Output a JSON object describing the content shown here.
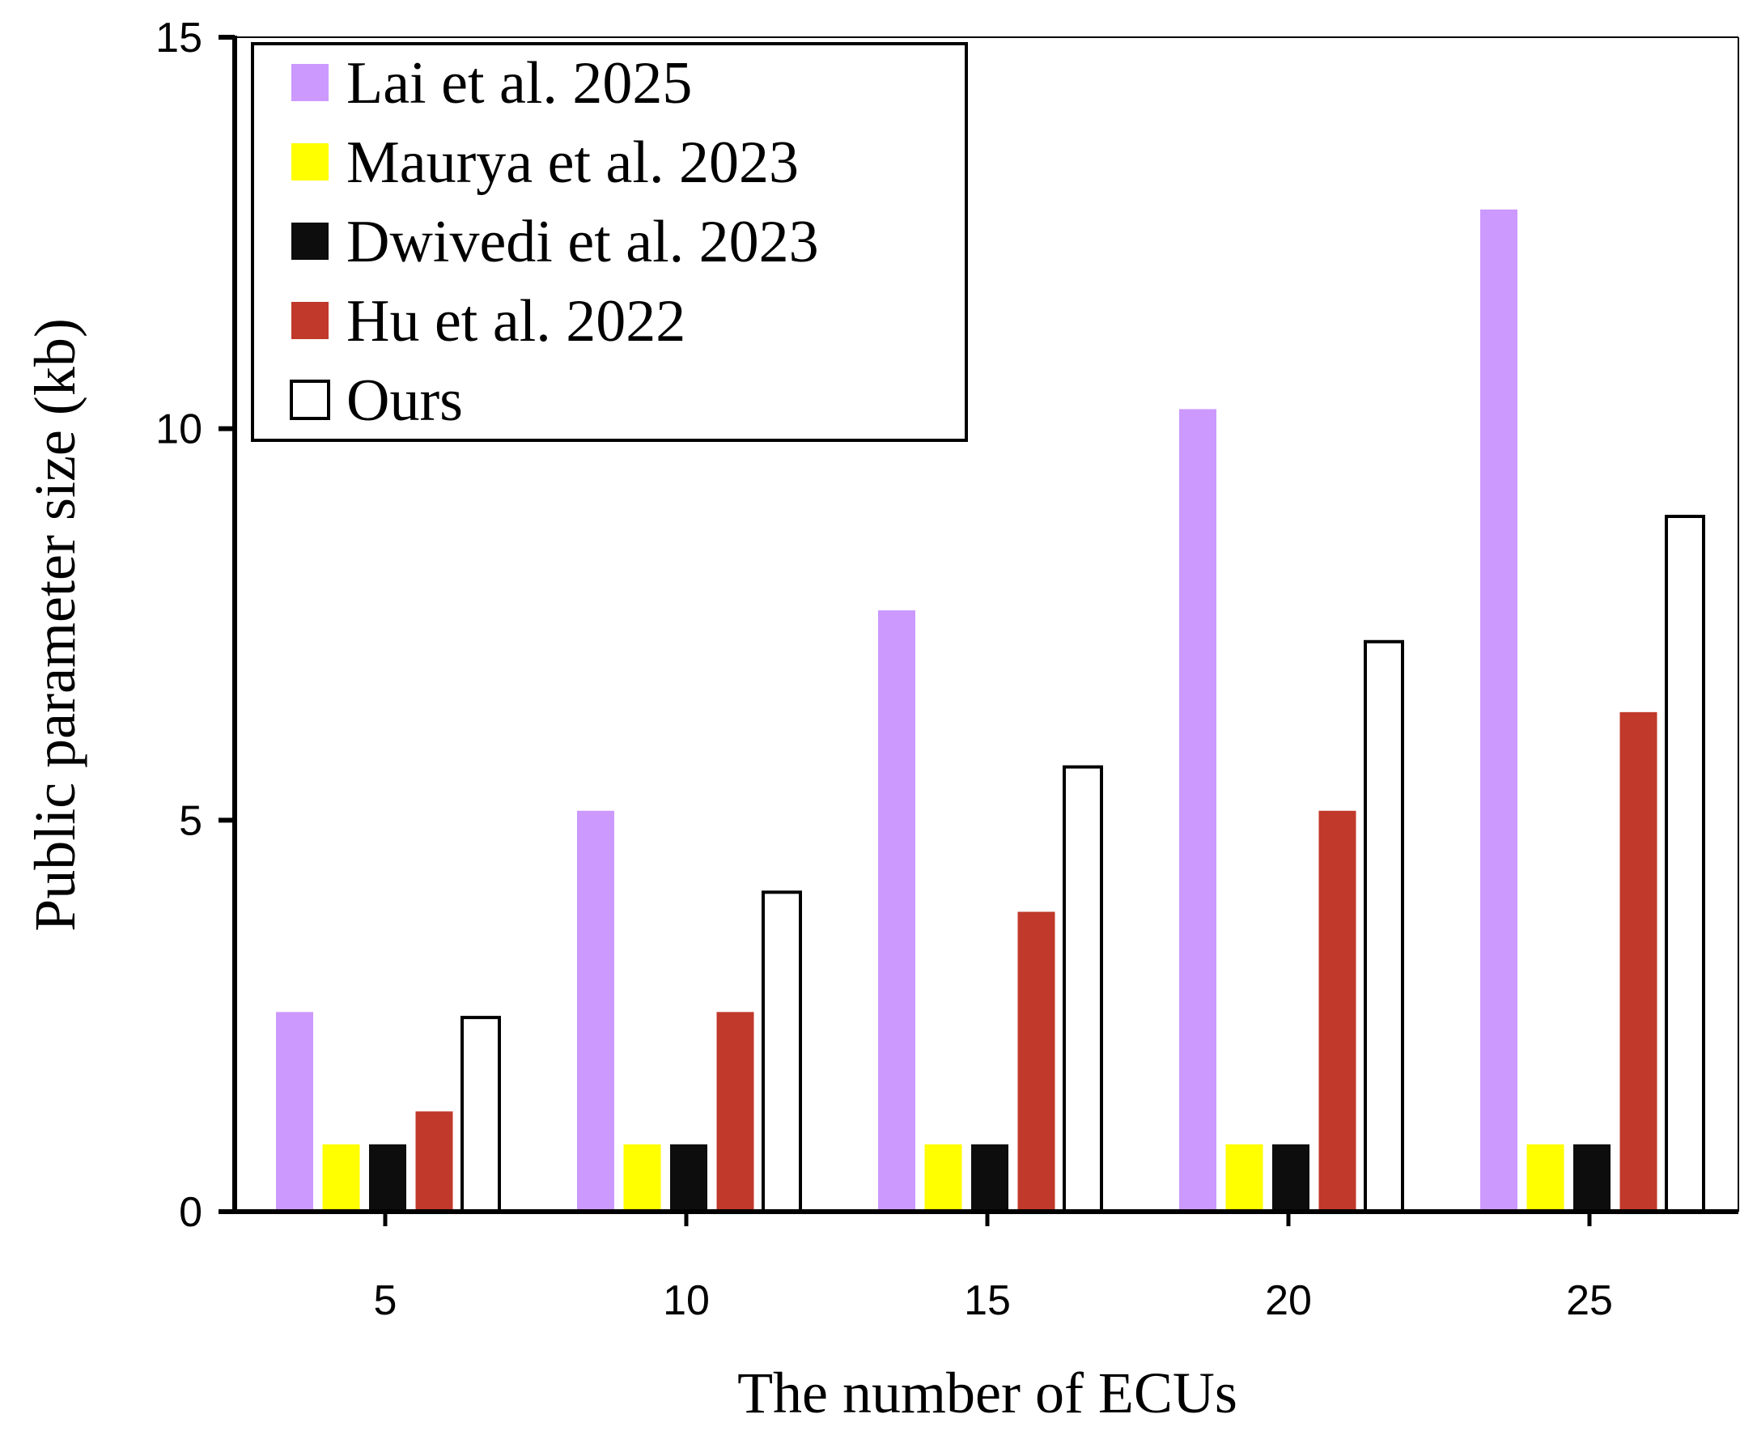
{
  "chart_data": {
    "type": "bar",
    "title": "",
    "xlabel": "The number of ECUs",
    "ylabel": "Public parameter size (kb)",
    "categories": [
      "5",
      "10",
      "15",
      "20",
      "25"
    ],
    "ylim": [
      0,
      15
    ],
    "yticks": [
      "0",
      "5",
      "10",
      "15"
    ],
    "grid": false,
    "legend_position": "top-left",
    "series": [
      {
        "name": "Lai et al. 2025",
        "color": "#cc99ff",
        "values": [
          2.55,
          5.12,
          7.68,
          10.25,
          12.8
        ]
      },
      {
        "name": "Maurya et al. 2023",
        "color": "#ffff00",
        "values": [
          0.86,
          0.86,
          0.86,
          0.86,
          0.86
        ]
      },
      {
        "name": "Dwivedi et al. 2023",
        "color": "#0d0d0d",
        "values": [
          0.86,
          0.86,
          0.86,
          0.86,
          0.86
        ]
      },
      {
        "name": "Hu et al. 2022",
        "color": "#c0392b",
        "values": [
          1.28,
          2.55,
          3.83,
          5.12,
          6.38
        ]
      },
      {
        "name": "Ours",
        "color": "#ffffff",
        "values": [
          2.48,
          4.08,
          5.68,
          7.28,
          8.88
        ]
      }
    ]
  }
}
